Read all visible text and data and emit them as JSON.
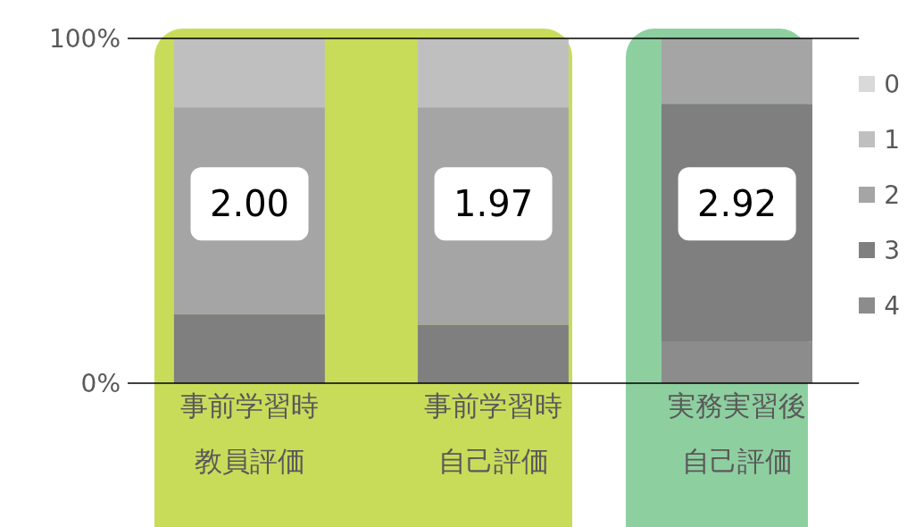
{
  "chart_data": {
    "type": "bar",
    "stacked": true,
    "categories": [
      "事前学習時教員評価",
      "事前学習時自己評価",
      "実務実習後自己評価"
    ],
    "series": [
      {
        "name": "4",
        "color": "#8c8c8c",
        "values": [
          0,
          0,
          12
        ]
      },
      {
        "name": "3",
        "color": "#7f7f7f",
        "values": [
          20,
          17,
          69
        ]
      },
      {
        "name": "2",
        "color": "#a5a5a5",
        "values": [
          60,
          63,
          19
        ]
      },
      {
        "name": "1",
        "color": "#bfbfbf",
        "values": [
          20,
          20,
          0
        ]
      },
      {
        "name": "0",
        "color": "#d9d9d9",
        "values": [
          0,
          0,
          0
        ]
      }
    ],
    "ylim": [
      0,
      100
    ],
    "yticks": [
      {
        "value": 0,
        "label": "0%"
      },
      {
        "value": 100,
        "label": "100%"
      }
    ],
    "legend": "right",
    "ref_lines": [
      {
        "axis": "y",
        "value": 100,
        "color": "#000000"
      }
    ],
    "bands": [
      {
        "axis": "x",
        "from": "事前学習時教員評価",
        "to": "事前学習時自己評価",
        "color": "#c8dc5a"
      },
      {
        "axis": "x",
        "from": "実務実習後自己評価",
        "to": "実務実習後自己評価",
        "color": "#8ecfa0"
      }
    ],
    "annotations": [
      "2.00",
      "1.97",
      "2.92"
    ]
  }
}
